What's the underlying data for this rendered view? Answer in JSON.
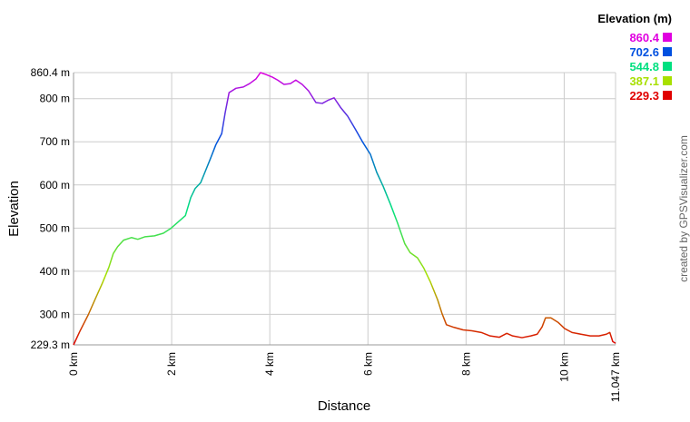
{
  "chart_data": {
    "type": "line",
    "xlabel": "Distance",
    "ylabel": "Elevation",
    "credit": "created by GPSVisualizer.com",
    "x": [
      0,
      0.13,
      0.3,
      0.44,
      0.59,
      0.72,
      0.81,
      0.9,
      1.02,
      1.18,
      1.31,
      1.46,
      1.65,
      1.83,
      1.98,
      2.13,
      2.28,
      2.39,
      2.48,
      2.59,
      2.68,
      2.79,
      2.9,
      3.02,
      3.09,
      3.17,
      3.31,
      3.46,
      3.59,
      3.72,
      3.81,
      3.92,
      4.05,
      4.16,
      4.29,
      4.42,
      4.53,
      4.66,
      4.79,
      4.94,
      5.07,
      5.2,
      5.31,
      5.44,
      5.59,
      5.74,
      5.9,
      6.05,
      6.18,
      6.31,
      6.46,
      6.6,
      6.75,
      6.86,
      7.01,
      7.14,
      7.27,
      7.42,
      7.51,
      7.6,
      7.75,
      7.94,
      8.12,
      8.31,
      8.49,
      8.68,
      8.83,
      8.95,
      9.14,
      9.32,
      9.45,
      9.55,
      9.62,
      9.73,
      9.88,
      10.01,
      10.16,
      10.34,
      10.53,
      10.71,
      10.86,
      10.93,
      10.99,
      11.047
    ],
    "series": [
      {
        "values": [
          229.3,
          261,
          299,
          335,
          373,
          409,
          441,
          457,
          472,
          478,
          474,
          480,
          482,
          488,
          499,
          514,
          529,
          571,
          592,
          605,
          630,
          661,
          693,
          719,
          767,
          814,
          824,
          827,
          835,
          846,
          860.4,
          856,
          850,
          843,
          833,
          835,
          843,
          833,
          818,
          791,
          789,
          797,
          802,
          780,
          759,
          730,
          698,
          671,
          629,
          597,
          555,
          513,
          464,
          443,
          431,
          407,
          376,
          334,
          302,
          276,
          270,
          264,
          262,
          258,
          250,
          247,
          256,
          250,
          246,
          250,
          254,
          271,
          292,
          292,
          281,
          267,
          258,
          254,
          250,
          250,
          254,
          258,
          237,
          233
        ]
      }
    ],
    "xlim": [
      0,
      11.047
    ],
    "ylim": [
      229.3,
      860.4
    ],
    "xticks": [
      {
        "value": 0,
        "label": "0 km"
      },
      {
        "value": 2,
        "label": "2 km"
      },
      {
        "value": 4,
        "label": "4 km"
      },
      {
        "value": 6,
        "label": "6 km"
      },
      {
        "value": 8,
        "label": "8 km"
      },
      {
        "value": 10,
        "label": "10 km"
      },
      {
        "value": 11.047,
        "label": "11.047 km"
      }
    ],
    "yticks": [
      {
        "value": 229.3,
        "label": "229.3 m"
      },
      {
        "value": 300,
        "label": "300 m"
      },
      {
        "value": 400,
        "label": "400 m"
      },
      {
        "value": 500,
        "label": "500 m"
      },
      {
        "value": 600,
        "label": "600 m"
      },
      {
        "value": 700,
        "label": "700 m"
      },
      {
        "value": 800,
        "label": "800 m"
      },
      {
        "value": 860.4,
        "label": "860.4 m"
      }
    ],
    "grid": true,
    "legend": {
      "title": "Elevation (m)",
      "items": [
        {
          "value": 860.4,
          "color": "#e000e0"
        },
        {
          "value": 702.6,
          "color": "#0050e0"
        },
        {
          "value": 544.8,
          "color": "#00e080"
        },
        {
          "value": 387.1,
          "color": "#a8e000"
        },
        {
          "value": 229.3,
          "color": "#e00000"
        }
      ]
    }
  }
}
